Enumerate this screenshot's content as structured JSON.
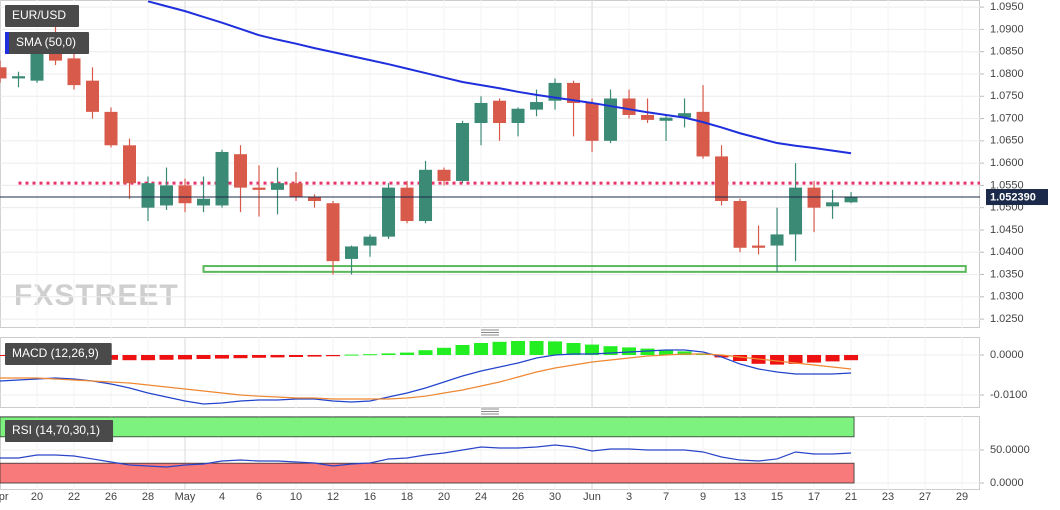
{
  "chart_data": [
    {
      "type": "candlestick",
      "title": "EUR/USD",
      "x": [
        0,
        1,
        2,
        3,
        4,
        5,
        6,
        7,
        8,
        9,
        10,
        11,
        12,
        13,
        14,
        15,
        16,
        17,
        18,
        19,
        20,
        21,
        22,
        23,
        24,
        25,
        26,
        27,
        28,
        29,
        30,
        31,
        32,
        33,
        34,
        35,
        36,
        37,
        38,
        39,
        40,
        41,
        42,
        43,
        44,
        45,
        46
      ],
      "open": [
        1.0815,
        1.079,
        1.0785,
        1.0855,
        1.0835,
        1.0785,
        1.0715,
        1.064,
        1.05,
        1.0505,
        1.055,
        1.0505,
        1.0505,
        1.062,
        1.0545,
        1.054,
        1.0555,
        1.0525,
        1.051,
        1.0385,
        1.0415,
        1.0435,
        1.0545,
        1.047,
        1.0585,
        1.056,
        1.069,
        1.074,
        1.069,
        1.072,
        1.074,
        1.078,
        1.0735,
        1.065,
        1.0745,
        1.0708,
        1.0695,
        1.0702,
        1.0715,
        1.0615,
        1.0515,
        1.0415,
        1.0415,
        1.044,
        1.0545,
        1.0503,
        1.0512
      ],
      "high": [
        1.083,
        1.0805,
        1.087,
        1.0935,
        1.085,
        1.0815,
        1.0725,
        1.0655,
        1.057,
        1.059,
        1.0565,
        1.057,
        1.063,
        1.064,
        1.0595,
        1.059,
        1.058,
        1.053,
        1.0515,
        1.0415,
        1.044,
        1.0555,
        1.056,
        1.0605,
        1.059,
        1.0695,
        1.075,
        1.0745,
        1.0725,
        1.0765,
        1.079,
        1.0785,
        1.0745,
        1.0765,
        1.0765,
        1.0745,
        1.071,
        1.0745,
        1.0775,
        1.064,
        1.052,
        1.046,
        1.05,
        1.06,
        1.056,
        1.054,
        1.0535
      ],
      "low": [
        1.078,
        1.077,
        1.078,
        1.082,
        1.0765,
        1.07,
        1.0635,
        1.052,
        1.047,
        1.0495,
        1.049,
        1.049,
        1.05,
        1.049,
        1.048,
        1.0485,
        1.0515,
        1.05,
        1.035,
        1.035,
        1.039,
        1.043,
        1.0465,
        1.0465,
        1.055,
        1.0555,
        1.064,
        1.065,
        1.066,
        1.0705,
        1.072,
        1.066,
        1.0625,
        1.0645,
        1.07,
        1.069,
        1.065,
        1.068,
        1.061,
        1.0505,
        1.04,
        1.0395,
        1.0355,
        1.038,
        1.0445,
        1.0475,
        1.051
      ],
      "close": [
        1.079,
        1.0795,
        1.0855,
        1.083,
        1.0775,
        1.0715,
        1.064,
        1.0555,
        1.0555,
        1.055,
        1.051,
        1.052,
        1.0625,
        1.0545,
        1.054,
        1.0555,
        1.0525,
        1.0515,
        1.038,
        1.0413,
        1.0435,
        1.0545,
        1.047,
        1.0585,
        1.056,
        1.069,
        1.0735,
        1.069,
        1.0722,
        1.0737,
        1.078,
        1.0735,
        1.065,
        1.0745,
        1.0708,
        1.0697,
        1.0702,
        1.0712,
        1.0615,
        1.0515,
        1.041,
        1.041,
        1.044,
        1.0545,
        1.05,
        1.0512,
        1.0524
      ],
      "up_color": "#3a8a76",
      "down_color": "#d75a4a",
      "overlays": [
        {
          "name": "SMA (50,0)",
          "type": "line",
          "color": "#1f2fdc",
          "values": [
            null,
            null,
            null,
            null,
            null,
            null,
            null,
            null,
            1.0963,
            1.0952,
            1.0941,
            1.0928,
            1.0915,
            1.0901,
            1.0887,
            1.0877,
            1.0868,
            1.0858,
            1.0849,
            1.084,
            1.0831,
            1.0822,
            1.0812,
            1.0802,
            1.0792,
            1.0782,
            1.0775,
            1.0768,
            1.076,
            1.0753,
            1.0747,
            1.0741,
            1.0735,
            1.0728,
            1.0721,
            1.0714,
            1.0708,
            1.0702,
            1.0692,
            1.068,
            1.0667,
            1.0656,
            1.0645,
            1.0639,
            1.0634,
            1.0628,
            1.0622
          ]
        }
      ],
      "hlines": [
        {
          "value": 1.0555,
          "color": "#e8336a"
        }
      ],
      "zones": [
        {
          "x": [
            11,
            52.2
          ],
          "y": [
            1.0356,
            1.0369
          ],
          "color": "#5cb85c"
        }
      ],
      "last_price": {
        "value": 1.05239,
        "label": "1.052390",
        "color": "#1b2a4a"
      },
      "xlim": [
        0,
        52.97
      ],
      "xticks": [
        {
          "value": 0,
          "label": "Apr"
        },
        {
          "value": 2,
          "label": "20"
        },
        {
          "value": 4,
          "label": "22"
        },
        {
          "value": 6,
          "label": "26"
        },
        {
          "value": 8,
          "label": "28"
        },
        {
          "value": 10,
          "label": "May"
        },
        {
          "value": 12,
          "label": "4"
        },
        {
          "value": 14,
          "label": "6"
        },
        {
          "value": 16,
          "label": "10"
        },
        {
          "value": 18,
          "label": "12"
        },
        {
          "value": 20,
          "label": "16"
        },
        {
          "value": 22,
          "label": "18"
        },
        {
          "value": 24,
          "label": "20"
        },
        {
          "value": 26,
          "label": "24"
        },
        {
          "value": 28,
          "label": "26"
        },
        {
          "value": 30,
          "label": "30"
        },
        {
          "value": 32,
          "label": "Jun"
        },
        {
          "value": 34,
          "label": "3"
        },
        {
          "value": 36,
          "label": "7"
        },
        {
          "value": 38,
          "label": "9"
        },
        {
          "value": 40,
          "label": "13"
        },
        {
          "value": 42,
          "label": "15"
        },
        {
          "value": 44,
          "label": "17"
        },
        {
          "value": 46,
          "label": "21"
        },
        {
          "value": 48,
          "label": "23"
        },
        {
          "value": 50,
          "label": "27"
        },
        {
          "value": 52,
          "label": "29"
        }
      ],
      "ylim": [
        1.023,
        1.0966
      ],
      "yticks": [
        {
          "value": 1.025,
          "label": "1.0250"
        },
        {
          "value": 1.03,
          "label": "1.0300"
        },
        {
          "value": 1.035,
          "label": "1.0350"
        },
        {
          "value": 1.04,
          "label": "1.0400"
        },
        {
          "value": 1.045,
          "label": "1.0450"
        },
        {
          "value": 1.05,
          "label": "1.0500"
        },
        {
          "value": 1.055,
          "label": "1.0550"
        },
        {
          "value": 1.06,
          "label": "1.0600"
        },
        {
          "value": 1.065,
          "label": "1.0650"
        },
        {
          "value": 1.07,
          "label": "1.0700"
        },
        {
          "value": 1.075,
          "label": "1.0750"
        },
        {
          "value": 1.08,
          "label": "1.0800"
        },
        {
          "value": 1.085,
          "label": "1.0850"
        },
        {
          "value": 1.09,
          "label": "1.0900"
        },
        {
          "value": 1.095,
          "label": "1.0950"
        }
      ],
      "grid": true
    },
    {
      "type": "macd",
      "title": "MACD (12,26,9)",
      "histogram": {
        "up_color": "#22ee22",
        "down_color": "#ee1111",
        "values": [
          -0.0002,
          -0.0003,
          -0.0004,
          -0.0006,
          -0.0008,
          -0.001,
          -0.0012,
          -0.0013,
          -0.0013,
          -0.0012,
          -0.0011,
          -0.001,
          -0.0009,
          -0.0008,
          -0.0007,
          -0.0006,
          -0.0005,
          -0.0004,
          -0.0003,
          0.0001,
          0.0002,
          0.0004,
          0.0006,
          0.0012,
          0.0018,
          0.0025,
          0.003,
          0.0033,
          0.0035,
          0.0035,
          0.0034,
          0.003,
          0.0026,
          0.0022,
          0.0019,
          0.0016,
          0.0013,
          0.0009,
          0.0004,
          -0.0006,
          -0.0015,
          -0.0022,
          -0.0024,
          -0.0022,
          -0.0019,
          -0.0016,
          -0.0013
        ]
      },
      "lines": [
        {
          "color": "#2244cc",
          "values": [
            -0.0065,
            -0.00625,
            -0.006,
            -0.00575,
            -0.006,
            -0.0065,
            -0.00725,
            -0.00825,
            -0.0095,
            -0.0105,
            -0.0115,
            -0.01225,
            -0.012,
            -0.0115,
            -0.01125,
            -0.01125,
            -0.011,
            -0.011,
            -0.0115,
            -0.01175,
            -0.0115,
            -0.0105,
            -0.0095,
            -0.00825,
            -0.00675,
            -0.00525,
            -0.004,
            -0.003,
            -0.002,
            -0.00075,
            0,
            0.00025,
            0.00025,
            0.0005,
            0.00075,
            0.001,
            0.00125,
            0.00125,
            0.00075,
            -0.0005,
            -0.00225,
            -0.0035,
            -0.00425,
            -0.00475,
            -0.00475,
            -0.00475,
            -0.0045
          ]
        },
        {
          "color": "#ee8833",
          "values": [
            -0.00575,
            -0.00575,
            -0.00575,
            -0.006,
            -0.00625,
            -0.0065,
            -0.00675,
            -0.007,
            -0.0075,
            -0.008,
            -0.0085,
            -0.009,
            -0.0095,
            -0.01,
            -0.0103,
            -0.0105,
            -0.01075,
            -0.01075,
            -0.011,
            -0.011,
            -0.011,
            -0.011,
            -0.01075,
            -0.0103,
            -0.0095,
            -0.00875,
            -0.00775,
            -0.00675,
            -0.0055,
            -0.00425,
            -0.00325,
            -0.0025,
            -0.00175,
            -0.00125,
            -0.00075,
            -0.00025,
            0,
            0.00025,
            0.00025,
            0,
            -0.0005,
            -0.001,
            -0.0015,
            -0.002,
            -0.0025,
            -0.003,
            -0.0035
          ]
        }
      ],
      "ylim": [
        -0.01325,
        0.005
      ],
      "yticks": [
        {
          "value": 0,
          "label": "0.0000"
        },
        {
          "value": -0.01,
          "label": "-0.0100"
        }
      ],
      "grid": true
    },
    {
      "type": "line",
      "title": "RSI (14,70,30,1)",
      "color": "#2a45c8",
      "values": [
        37.9,
        37.9,
        42.4,
        42.4,
        40.9,
        36.4,
        31.8,
        27.3,
        25.8,
        24.2,
        27.3,
        28.8,
        33.3,
        34.8,
        33.3,
        33.3,
        31.8,
        30.3,
        25.8,
        28.8,
        30.3,
        36.4,
        37.9,
        42.4,
        45.5,
        50,
        54.5,
        53,
        53,
        54.5,
        57.6,
        54.5,
        48.5,
        51.5,
        51.5,
        50,
        50,
        50,
        47,
        39.4,
        34.8,
        33.3,
        36.4,
        47,
        43.9,
        43.9,
        45.5
      ],
      "bands": [
        {
          "from": 70,
          "to": 100,
          "color": "#7ef27e"
        },
        {
          "from": 0,
          "to": 30,
          "color": "#f87a7a"
        }
      ],
      "ylim": [
        -10.6,
        101.5
      ],
      "yticks": [
        {
          "value": 50,
          "label": "50.0000"
        },
        {
          "value": 0,
          "label": "0.0000"
        }
      ],
      "grid": true
    }
  ],
  "watermark": "FXSTREET"
}
